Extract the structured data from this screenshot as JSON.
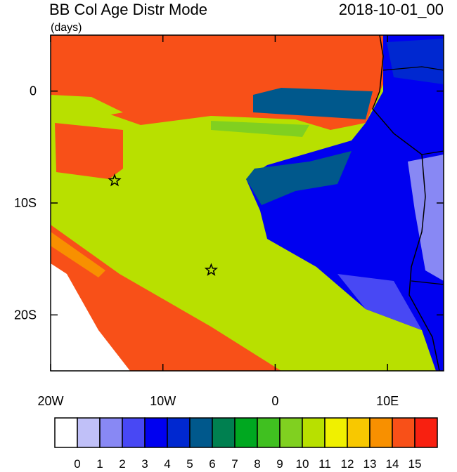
{
  "title": "BB Col Age Distr Mode",
  "units": "(days)",
  "date": "2018-10-01_00",
  "xlim": [
    -20,
    15
  ],
  "ylim": [
    -25,
    5
  ],
  "xticks": [
    {
      "value": -20,
      "label": "20W"
    },
    {
      "value": -10,
      "label": "10W"
    },
    0,
    {
      "value": 10,
      "label": "10E"
    }
  ],
  "yticks": [
    0,
    {
      "value": -10,
      "label": "10S"
    },
    {
      "value": -20,
      "label": "20S"
    }
  ],
  "markers": [
    {
      "lon": -14.3,
      "lat": -8
    },
    {
      "lon": -5.7,
      "lat": -16
    }
  ],
  "colorbar": {
    "levels": [
      0,
      1,
      2,
      3,
      4,
      5,
      6,
      7,
      8,
      9,
      10,
      11,
      12,
      13,
      14,
      15
    ],
    "colors": [
      "#ffffff",
      "#c0c0f8",
      "#8888f4",
      "#4848f4",
      "#0000f0",
      "#0028d0",
      "#00588c",
      "#008050",
      "#00a820",
      "#40c020",
      "#80d020",
      "#b8e000",
      "#f0f000",
      "#f8c800",
      "#f89000",
      "#f85018",
      "#f82010"
    ]
  }
}
